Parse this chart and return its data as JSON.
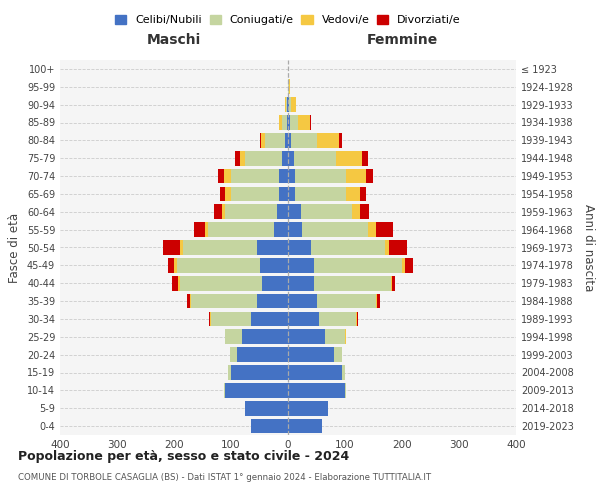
{
  "age_groups": [
    "0-4",
    "5-9",
    "10-14",
    "15-19",
    "20-24",
    "25-29",
    "30-34",
    "35-39",
    "40-44",
    "45-49",
    "50-54",
    "55-59",
    "60-64",
    "65-69",
    "70-74",
    "75-79",
    "80-84",
    "85-89",
    "90-94",
    "95-99",
    "100+"
  ],
  "birth_years": [
    "2019-2023",
    "2014-2018",
    "2009-2013",
    "2004-2008",
    "1999-2003",
    "1994-1998",
    "1989-1993",
    "1984-1988",
    "1979-1983",
    "1974-1978",
    "1969-1973",
    "1964-1968",
    "1959-1963",
    "1954-1958",
    "1949-1953",
    "1944-1948",
    "1939-1943",
    "1934-1938",
    "1929-1933",
    "1924-1928",
    "≤ 1923"
  ],
  "maschi": {
    "celibi": [
      65,
      75,
      110,
      100,
      90,
      80,
      65,
      55,
      45,
      50,
      55,
      25,
      20,
      15,
      15,
      10,
      5,
      2,
      1,
      0,
      0
    ],
    "coniugati": [
      0,
      0,
      2,
      5,
      12,
      30,
      70,
      115,
      145,
      145,
      130,
      115,
      90,
      85,
      85,
      65,
      35,
      8,
      2,
      0,
      0
    ],
    "vedovi": [
      0,
      0,
      0,
      0,
      0,
      1,
      1,
      2,
      3,
      5,
      5,
      5,
      5,
      10,
      12,
      10,
      8,
      5,
      2,
      0,
      0
    ],
    "divorziati": [
      0,
      0,
      0,
      0,
      0,
      0,
      2,
      5,
      10,
      10,
      30,
      20,
      15,
      10,
      10,
      8,
      2,
      0,
      0,
      0,
      0
    ]
  },
  "femmine": {
    "nubili": [
      60,
      70,
      100,
      95,
      80,
      65,
      55,
      50,
      45,
      45,
      40,
      25,
      22,
      12,
      12,
      10,
      5,
      3,
      1,
      0,
      0
    ],
    "coniugate": [
      0,
      0,
      2,
      5,
      15,
      35,
      65,
      105,
      135,
      155,
      130,
      115,
      90,
      90,
      90,
      75,
      45,
      15,
      5,
      2,
      0
    ],
    "vedove": [
      0,
      0,
      0,
      0,
      0,
      1,
      1,
      2,
      3,
      5,
      8,
      15,
      15,
      25,
      35,
      45,
      40,
      20,
      8,
      2,
      0
    ],
    "divorziate": [
      0,
      0,
      0,
      0,
      0,
      0,
      2,
      5,
      5,
      15,
      30,
      30,
      15,
      10,
      12,
      10,
      5,
      2,
      0,
      0,
      0
    ]
  },
  "colors": {
    "celibi": "#4472C4",
    "coniugati": "#C5D5A0",
    "vedovi": "#F5C842",
    "divorziati": "#CC0000"
  },
  "xlim": 400,
  "xticks": [
    -400,
    -300,
    -200,
    -100,
    0,
    100,
    200,
    300,
    400
  ],
  "title": "Popolazione per età, sesso e stato civile - 2024",
  "subtitle": "COMUNE DI TORBOLE CASAGLIA (BS) - Dati ISTAT 1° gennaio 2024 - Elaborazione TUTTITALIA.IT",
  "legend_labels": [
    "Celibi/Nubili",
    "Coniugati/e",
    "Vedovi/e",
    "Divorziati/e"
  ],
  "ylabel_left": "Fasce di età",
  "ylabel_right": "Anni di nascita",
  "maschi_label": "Maschi",
  "femmine_label": "Femmine",
  "bg_color": "#f5f5f5"
}
